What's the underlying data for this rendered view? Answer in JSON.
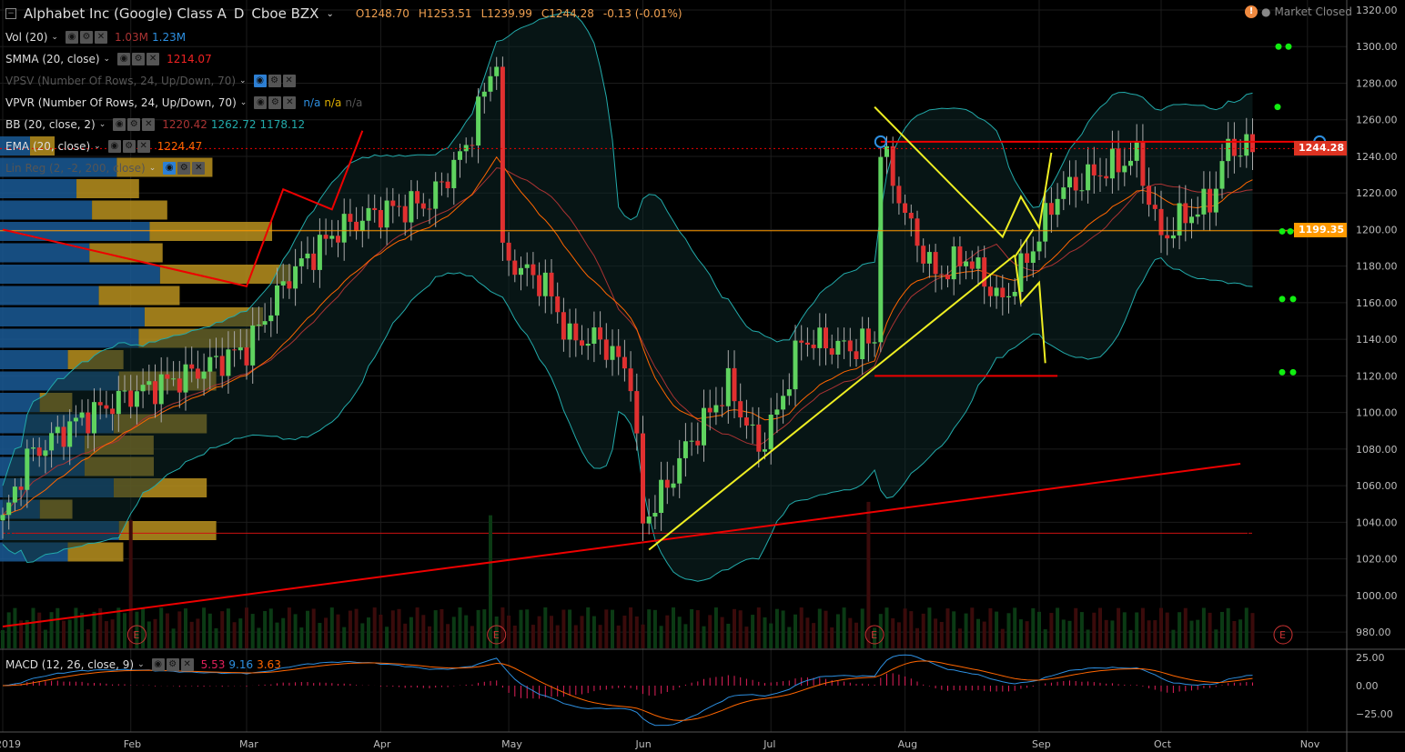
{
  "header": {
    "symbol": "Alphabet Inc (Google) Class A",
    "interval": "D",
    "exchange": "Cboe BZX",
    "open": "O1248.70",
    "high": "H1253.51",
    "low": "L1239.99",
    "close": "C1244.28",
    "change": "-0.13 (-0.01%)",
    "status": "Market Closed"
  },
  "indicators": [
    {
      "name": "Vol (20)",
      "values": [
        {
          "v": "1.03M",
          "c": "#a33"
        },
        {
          "v": "1.23M",
          "c": "#2d8fe0"
        }
      ]
    },
    {
      "name": "SMMA (20, close)",
      "values": [
        {
          "v": "1214.07",
          "c": "#e22"
        }
      ]
    },
    {
      "name": "VPSV (Number Of Rows, 24, Up/Down, 70)",
      "values": [],
      "dim": true
    },
    {
      "name": "VPVR (Number Of Rows, 24, Up/Down, 70)",
      "values": [
        {
          "v": "n/a",
          "c": "#2d8fe0"
        },
        {
          "v": "n/a",
          "c": "#e0b000"
        },
        {
          "v": "n/a",
          "c": "#555"
        }
      ]
    },
    {
      "name": "BB (20, close, 2)",
      "values": [
        {
          "v": "1220.42",
          "c": "#a33"
        },
        {
          "v": "1262.72",
          "c": "#2aa"
        },
        {
          "v": "1178.12",
          "c": "#2aa"
        }
      ]
    },
    {
      "name": "EMA (20, close)",
      "values": [
        {
          "v": "1224.47",
          "c": "#f60"
        }
      ]
    },
    {
      "name": "Lin Reg (2, -2, 200, close)",
      "values": [],
      "dim": true
    }
  ],
  "macd": {
    "name": "MACD (12, 26, close, 9)",
    "hist": "5.53",
    "macd": "9.16",
    "signal": "3.63"
  },
  "price_labels": {
    "last": "1244.28",
    "line": "1199.35"
  },
  "colors": {
    "up": "#5fd35f",
    "down": "#e03030",
    "accent": "#f08a40"
  },
  "chart_data": {
    "type": "candlestick",
    "title": "Alphabet Inc (Google) Class A, D, Cboe BZX",
    "ylim": [
      970,
      1325
    ],
    "yticks": [
      "1320.00",
      "1300.00",
      "1280.00",
      "1260.00",
      "1240.00",
      "1220.00",
      "1200.00",
      "1180.00",
      "1160.00",
      "1140.00",
      "1120.00",
      "1100.00",
      "1080.00",
      "1060.00",
      "1040.00",
      "1020.00",
      "1000.00",
      "980.00"
    ],
    "xticks": [
      {
        "label": "2019",
        "day": 0
      },
      {
        "label": "Feb",
        "day": 21
      },
      {
        "label": "Mar",
        "day": 40
      },
      {
        "label": "Apr",
        "day": 62
      },
      {
        "label": "May",
        "day": 83
      },
      {
        "label": "Jun",
        "day": 105
      },
      {
        "label": "Jul",
        "day": 126
      },
      {
        "label": "Aug",
        "day": 148
      },
      {
        "label": "Sep",
        "day": 170
      },
      {
        "label": "Oct",
        "day": 190
      },
      {
        "label": "Nov",
        "day": 214
      }
    ],
    "macd_ticks": [
      "25.00",
      "0.00",
      "−25.00"
    ],
    "close_keypoints": [
      [
        0,
        1040
      ],
      [
        4,
        1075
      ],
      [
        12,
        1095
      ],
      [
        21,
        1110
      ],
      [
        30,
        1120
      ],
      [
        40,
        1135
      ],
      [
        47,
        1175
      ],
      [
        55,
        1200
      ],
      [
        62,
        1210
      ],
      [
        70,
        1215
      ],
      [
        76,
        1245
      ],
      [
        81,
        1295
      ],
      [
        82,
        1185
      ],
      [
        89,
        1170
      ],
      [
        93,
        1140
      ],
      [
        98,
        1140
      ],
      [
        103,
        1120
      ],
      [
        105,
        1040
      ],
      [
        109,
        1060
      ],
      [
        112,
        1080
      ],
      [
        119,
        1115
      ],
      [
        124,
        1080
      ],
      [
        127,
        1100
      ],
      [
        131,
        1140
      ],
      [
        139,
        1135
      ],
      [
        143,
        1140
      ],
      [
        144,
        1245
      ],
      [
        149,
        1200
      ],
      [
        153,
        1175
      ],
      [
        158,
        1185
      ],
      [
        164,
        1160
      ],
      [
        169,
        1190
      ],
      [
        173,
        1220
      ],
      [
        179,
        1230
      ],
      [
        186,
        1240
      ],
      [
        190,
        1195
      ],
      [
        193,
        1205
      ],
      [
        198,
        1215
      ],
      [
        201,
        1245
      ],
      [
        205,
        1244
      ]
    ],
    "earnings_days": [
      22,
      81,
      143,
      210
    ],
    "trendlines": [
      {
        "color": "#e00",
        "pts": [
          [
            0,
            983
          ],
          [
            203,
            1072
          ]
        ]
      },
      {
        "color": "#e00",
        "pts": [
          [
            0,
            1200
          ],
          [
            40,
            1169
          ],
          [
            46,
            1222
          ],
          [
            54,
            1211
          ],
          [
            59,
            1254
          ]
        ]
      },
      {
        "color": "#e00",
        "pts": [
          [
            144,
            1248
          ],
          [
            216,
            1248
          ]
        ]
      },
      {
        "color": "#e00",
        "pts": [
          [
            143,
            1120
          ],
          [
            173,
            1120
          ]
        ]
      },
      {
        "color": "#ee2",
        "pts": [
          [
            106,
            1025
          ],
          [
            166,
            1186
          ]
        ]
      },
      {
        "color": "#ee2",
        "pts": [
          [
            143,
            1267
          ],
          [
            164,
            1196
          ],
          [
            167,
            1218
          ],
          [
            170,
            1201
          ],
          [
            172,
            1242
          ]
        ]
      },
      {
        "color": "#ee2",
        "pts": [
          [
            166,
            1186
          ],
          [
            167,
            1160
          ],
          [
            170,
            1171
          ],
          [
            171,
            1127
          ]
        ]
      },
      {
        "color": "#ee2",
        "pts": [
          [
            169,
            1200
          ],
          [
            166,
            1185
          ]
        ]
      }
    ],
    "levels": [
      {
        "price": 1199.35,
        "color": "#f90"
      },
      {
        "price": 1244.28,
        "color": "#e00",
        "dashed": true
      }
    ]
  }
}
